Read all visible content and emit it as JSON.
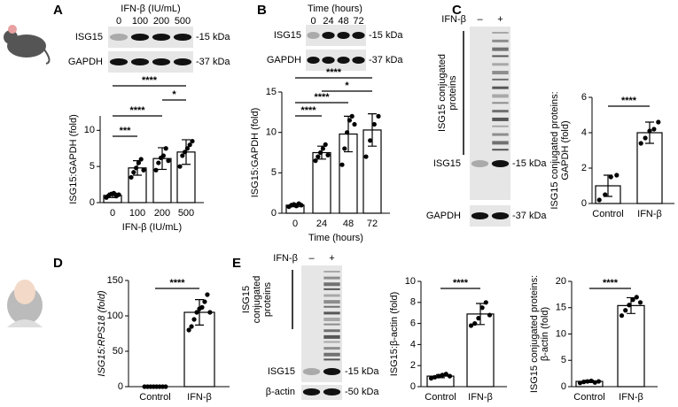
{
  "panel_letters": [
    "A",
    "B",
    "C",
    "D",
    "E"
  ],
  "blots": [
    {
      "header": "IFN-β (IU/mL)",
      "lanes": [
        "0",
        "100",
        "200",
        "500"
      ],
      "rows": [
        {
          "label": "ISG15",
          "marker": "-15 kDa"
        },
        {
          "label": "GAPDH",
          "marker": "-37 kDa"
        }
      ]
    },
    {
      "header": "Time (hours)",
      "lanes": [
        "0",
        "24",
        "48",
        "72"
      ],
      "rows": [
        {
          "label": "ISG15",
          "marker": "-15 kDa"
        },
        {
          "label": "GAPDH",
          "marker": "-37 kDa"
        }
      ]
    },
    {
      "header": "IFN-β",
      "lanes": [
        "–",
        "+"
      ],
      "bracket": [
        "ISG15 conjugated",
        "proteins"
      ],
      "rows": [
        {
          "label": "ISG15",
          "marker": "-15 kDa"
        },
        {
          "label": "GAPDH",
          "marker": "-37 kDa"
        }
      ]
    },
    {
      "header": "IFN-β",
      "lanes": [
        "–",
        "+"
      ],
      "bracket": [
        "ISG15",
        "conjugated",
        "proteins"
      ],
      "rows": [
        {
          "label": "ISG15",
          "marker": "-15 kDa"
        },
        {
          "label": "β-actin",
          "marker": "-50 kDa"
        }
      ]
    }
  ],
  "chart_data": [
    {
      "type": "bar",
      "categories": [
        "0",
        "100",
        "200",
        "500"
      ],
      "values": [
        1,
        4.8,
        6.1,
        7.0
      ],
      "errors": [
        0.3,
        1.0,
        1.5,
        1.7
      ],
      "points": [
        [
          0.7,
          1.0,
          1.2,
          1.3,
          0.9,
          1.1
        ],
        [
          3.5,
          4.2,
          4.8,
          5.5,
          6.0,
          4.5
        ],
        [
          4.5,
          5.5,
          6.2,
          6.5,
          7.5,
          5.8
        ],
        [
          5.0,
          6.5,
          7.0,
          7.5,
          8.0,
          8.5
        ]
      ],
      "ylim": [
        0,
        12
      ],
      "yticks": [
        0,
        5,
        10
      ],
      "y_label": [
        "ISG15:GAPDH (fold)"
      ],
      "x_label": "IFN-β (IU/mL)",
      "color": "#ffffff",
      "marker_color": "#000000",
      "significance": [
        {
          "label": "****",
          "between": [
            "0",
            "500"
          ]
        },
        {
          "label": "****",
          "between": [
            "0",
            "200"
          ]
        },
        {
          "label": "*",
          "between": [
            "200",
            "500"
          ]
        },
        {
          "label": "***",
          "between": [
            "0",
            "100"
          ]
        }
      ]
    },
    {
      "type": "bar",
      "categories": [
        "0",
        "24",
        "48",
        "72"
      ],
      "values": [
        1,
        7.5,
        9.8,
        10.3
      ],
      "errors": [
        0.2,
        0.8,
        2.2,
        2.0
      ],
      "points": [
        [
          0.8,
          1,
          1.1,
          0.9,
          1.2,
          1
        ],
        [
          6.5,
          7,
          7.5,
          8,
          8.5,
          7.2
        ],
        [
          6,
          8,
          10,
          11.5,
          12,
          11
        ],
        [
          7,
          9,
          11,
          12
        ]
      ],
      "ylim": [
        0,
        15
      ],
      "yticks": [
        0,
        5,
        10,
        15
      ],
      "y_label": [
        "ISG15:GAPDH (fold)"
      ],
      "x_label": "Time (hours)",
      "color": "#ffffff",
      "marker_color": "#000000",
      "significance": [
        {
          "label": "****",
          "between": [
            "0",
            "72"
          ]
        },
        {
          "label": "*",
          "between": [
            "24",
            "72"
          ]
        },
        {
          "label": "****",
          "between": [
            "0",
            "48"
          ]
        },
        {
          "label": "****",
          "between": [
            "0",
            "24"
          ]
        }
      ]
    },
    {
      "type": "bar",
      "categories": [
        "Control",
        "IFN-β"
      ],
      "values": [
        1,
        4
      ],
      "errors": [
        0.6,
        0.6
      ],
      "points": [
        [
          0.2,
          0.5,
          1.5,
          1.6
        ],
        [
          3.4,
          3.7,
          4.1,
          4.2,
          4.6
        ]
      ],
      "ylim": [
        0,
        6
      ],
      "yticks": [
        0,
        2,
        4,
        6
      ],
      "y_label": [
        "ISG15 conjugated proteins:",
        "GAPDH (fold)"
      ],
      "color": "#ffffff",
      "marker_color": "#000000",
      "significance": [
        {
          "label": "****",
          "between": [
            "Control",
            "IFN-β"
          ]
        }
      ]
    },
    {
      "type": "bar",
      "categories": [
        "Control",
        "IFN-β"
      ],
      "values": [
        0,
        105
      ],
      "errors": [
        0,
        18
      ],
      "points": [
        [
          0,
          0,
          0,
          0,
          0,
          0,
          0,
          0
        ],
        [
          80,
          85,
          95,
          105,
          110,
          112,
          120,
          130,
          105
        ]
      ],
      "ylim": [
        0,
        150
      ],
      "yticks": [
        0,
        50,
        100,
        150
      ],
      "y_label": [
        "ISG15:RPS18 (fold)"
      ],
      "italic_label": true,
      "color": "#ffffff",
      "marker_color": "#000000",
      "significance": [
        {
          "label": "****",
          "between": [
            "Control",
            "IFN-β"
          ]
        }
      ]
    },
    {
      "type": "bar",
      "categories": [
        "Control",
        "IFN-β"
      ],
      "values": [
        1,
        6.9
      ],
      "errors": [
        0.15,
        1.0
      ],
      "points": [
        [
          0.8,
          0.9,
          1,
          1.1,
          1.2,
          1
        ],
        [
          5.8,
          6,
          6.5,
          7.5,
          8,
          6.8
        ]
      ],
      "ylim": [
        0,
        10
      ],
      "yticks": [
        0,
        2,
        4,
        6,
        8,
        10
      ],
      "y_label": [
        "ISG15:β-actin (fold)"
      ],
      "color": "#ffffff",
      "marker_color": "#000000",
      "significance": [
        {
          "label": "****",
          "between": [
            "Control",
            "IFN-β"
          ]
        }
      ]
    },
    {
      "type": "bar",
      "categories": [
        "Control",
        "IFN-β"
      ],
      "values": [
        1,
        15.4
      ],
      "errors": [
        0.2,
        1.5
      ],
      "points": [
        [
          0.7,
          0.9,
          1,
          1.1,
          0.8,
          1
        ],
        [
          13.5,
          14.5,
          15.5,
          16.5,
          17,
          16
        ]
      ],
      "ylim": [
        0,
        20
      ],
      "yticks": [
        0,
        5,
        10,
        15,
        20
      ],
      "y_label": [
        "ISG15 conjugated proteins:",
        "β-actin (fold)"
      ],
      "color": "#ffffff",
      "marker_color": "#000000",
      "significance": [
        {
          "label": "****",
          "between": [
            "Control",
            "IFN-β"
          ]
        }
      ]
    }
  ]
}
